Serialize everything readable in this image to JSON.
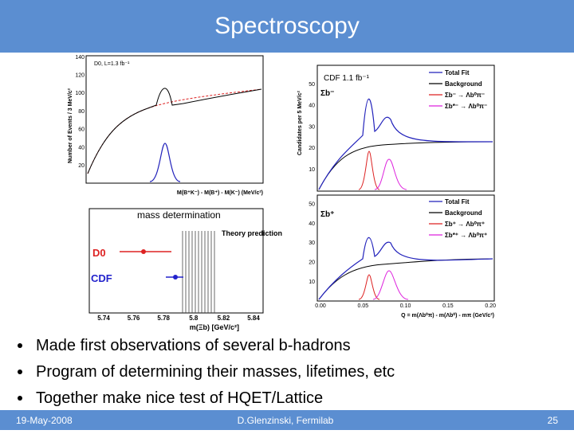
{
  "header": {
    "title": "Spectroscopy"
  },
  "d0_plot": {
    "label": "D0, L=1.3 fb⁻¹",
    "y_axis": "Number of Events / 3 MeV/c²",
    "x_axis": "M(B⁺K⁻) - M(B⁺) - M(K⁻) (MeV/c²)",
    "yticks": [
      "20",
      "40",
      "60",
      "80",
      "100",
      "120",
      "140"
    ]
  },
  "mass_plot": {
    "caption": "mass determination",
    "experiments": [
      "D0",
      "CDF"
    ],
    "theory": "Theory prediction",
    "xticks": [
      "5.74",
      "5.76",
      "5.78",
      "5.8",
      "5.82",
      "5.84"
    ],
    "x_axis": "m(Ξb)  [GeV/c²]"
  },
  "cdf_plot": {
    "label": "CDF 1.1 fb⁻¹",
    "y_axis": "Candidates per 5 MeV/c²",
    "x_axis": "Q = m(Λb⁰π) - m(Λb⁰) - mπ  (GeV/c²)",
    "xticks": [
      "0.00",
      "0.05",
      "0.10",
      "0.15",
      "0.20"
    ],
    "top": {
      "label": "Σb⁻",
      "yticks": [
        "10",
        "20",
        "30",
        "40",
        "50"
      ],
      "legend": [
        "Total Fit",
        "Background",
        "Σb⁻ → Λb⁰π⁻",
        "Σb*⁻ → Λb⁰π⁻"
      ]
    },
    "bottom": {
      "label": "Σb⁺",
      "yticks": [
        "10",
        "20",
        "30",
        "40",
        "50"
      ],
      "legend": [
        "Total Fit",
        "Background",
        "Σb⁺ → Λb⁰π⁺",
        "Σb*⁺ → Λb⁰π⁺"
      ]
    }
  },
  "bullets": [
    "Made first observations of several b-hadrons",
    "Program of determining their masses, lifetimes, etc",
    "Together make nice test of HQET/Lattice"
  ],
  "footer": {
    "date": "19-May-2008",
    "author": "D.Glenzinski, Fermilab",
    "page": "25"
  }
}
